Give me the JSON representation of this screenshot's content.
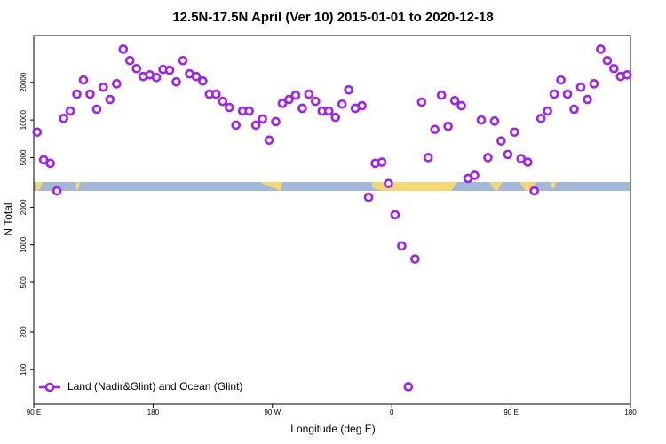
{
  "chart_data": {
    "type": "scatter",
    "title": "12.5N-17.5N April (Ver 10)   2015-01-01 to 2020-12-18",
    "x_label": "Longitude (deg E)",
    "y_label": "N Total",
    "log_y": true,
    "legend": "bottom-left",
    "xlim": [
      90,
      540
    ],
    "xticks": [
      {
        "value": 90,
        "label": "90 E"
      },
      180,
      {
        "value": 270,
        "label": "90 W"
      },
      {
        "value": 360,
        "label": "0"
      },
      {
        "value": 450,
        "label": "90 E"
      },
      {
        "value": 540,
        "label": "180"
      }
    ],
    "ylim": [
      53,
      47500
    ],
    "yticks": [
      100,
      200,
      500,
      1000,
      2000,
      5000,
      10000,
      20000
    ],
    "x": [
      92.5,
      97.5,
      102.5,
      107.5,
      112.5,
      117.5,
      122.5,
      127.5,
      132.5,
      137.5,
      142.5,
      147.5,
      152.5,
      157.5,
      162.5,
      167.5,
      172.5,
      177.5,
      182.5,
      187.5,
      192.5,
      197.5,
      202.5,
      207.5,
      212.5,
      217.5,
      222.5,
      227.5,
      232.5,
      237.5,
      242.5,
      247.5,
      252.5,
      257.5,
      262.5,
      267.5,
      272.5,
      277.5,
      282.5,
      287.5,
      292.5,
      297.5,
      302.5,
      307.5,
      312.5,
      317.5,
      322.5,
      327.5,
      332.5,
      337.5,
      342.5,
      347.5,
      352.5,
      357.5,
      362.5,
      367.5,
      372.5,
      377.5,
      382.5,
      387.5,
      392.5,
      397.5,
      402.5,
      407.5,
      412.5,
      417.5,
      422.5,
      427.5,
      432.5,
      437.5,
      442.5,
      447.5,
      452.5,
      457.5,
      462.5,
      467.5,
      472.5,
      477.5,
      482.5,
      487.5,
      492.5,
      497.5,
      502.5,
      507.5,
      512.5,
      517.5,
      522.5,
      527.5,
      532.5,
      537.5
    ],
    "series": [
      {
        "name": "Land (Nadir&Glint) and Ocean (Glint)",
        "color": "#a020f0",
        "values": [
          8000,
          4800,
          4500,
          2700,
          10300,
          11800,
          16100,
          20900,
          16100,
          12200,
          18300,
          14600,
          19500,
          36900,
          29900,
          25800,
          22300,
          23000,
          21900,
          25400,
          25000,
          20200,
          29900,
          23400,
          22300,
          20500,
          16100,
          16100,
          14100,
          12600,
          9100,
          11800,
          11800,
          9100,
          10200,
          6900,
          9700,
          13600,
          14600,
          15800,
          12400,
          16100,
          14100,
          11800,
          11800,
          10500,
          13400,
          17400,
          12400,
          13000,
          2400,
          4500,
          4600,
          3100,
          1740,
          980,
          73,
          770,
          13900,
          5000,
          8400,
          15800,
          8900,
          14300,
          13000,
          3400,
          3600,
          10000,
          5000,
          9800,
          6800,
          5300,
          8000,
          4900,
          4600,
          2700,
          10300,
          11800,
          16100,
          20900,
          16100,
          12200,
          18300,
          14600,
          19500,
          36900,
          29900,
          25800,
          22300,
          23000
        ]
      }
    ]
  }
}
